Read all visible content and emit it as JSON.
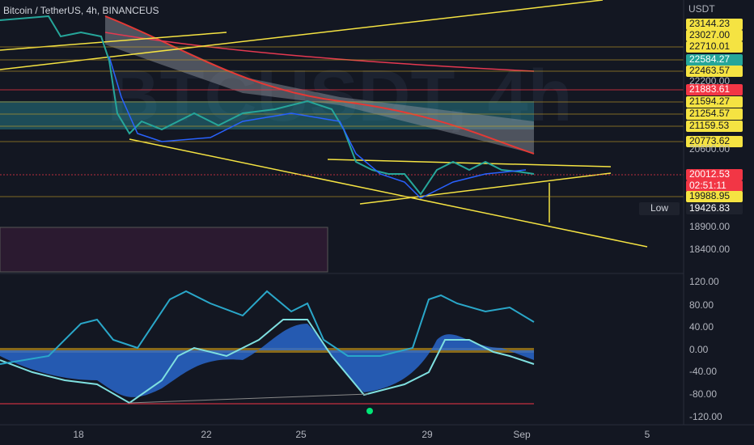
{
  "header": {
    "title": "Bitcoin / TetherUS, 4h, BINANCEUS",
    "currency": "USDT"
  },
  "price_axis": [
    {
      "text": "23144.23",
      "kind": "tag",
      "color": "#f5e342"
    },
    {
      "text": "23027.00",
      "kind": "tag",
      "color": "#f5e342"
    },
    {
      "text": "22710.01",
      "kind": "tag",
      "color": "#f5e342"
    },
    {
      "text": "22584.27",
      "kind": "tag",
      "color": "#26a69a"
    },
    {
      "text": "22463.57",
      "kind": "tag",
      "color": "#f5e342"
    },
    {
      "text": "22200.00",
      "kind": "plain"
    },
    {
      "text": "21883.61",
      "kind": "tag",
      "color": "#f23645"
    },
    {
      "text": "21594.27",
      "kind": "tag",
      "color": "#f5e342"
    },
    {
      "text": "21254.57",
      "kind": "tag",
      "color": "#f5e342"
    },
    {
      "text": "21159.53",
      "kind": "tag",
      "color": "#f5e342"
    },
    {
      "text": "20773.62",
      "kind": "tag",
      "color": "#f5e342"
    },
    {
      "text": "20600.00",
      "kind": "plain"
    },
    {
      "text": "20012.53",
      "kind": "tag",
      "color": "#f23645"
    },
    {
      "text": "02:51:11",
      "kind": "tag",
      "color": "#f23645"
    },
    {
      "text": "19988.95",
      "kind": "tag",
      "color": "#f5e342"
    },
    {
      "text": "19426.83",
      "kind": "tag",
      "color": "#1e222d"
    },
    {
      "text": "18900.00",
      "kind": "plain"
    },
    {
      "text": "18400.00",
      "kind": "plain"
    }
  ],
  "low_label": "Low",
  "oscillator_axis": [
    "120.00",
    "80.00",
    "40.00",
    "0.00",
    "-40.00",
    "-80.00",
    "-120.00"
  ],
  "time_axis": [
    "18",
    "22",
    "25",
    "29",
    "Sep",
    "5"
  ]
}
